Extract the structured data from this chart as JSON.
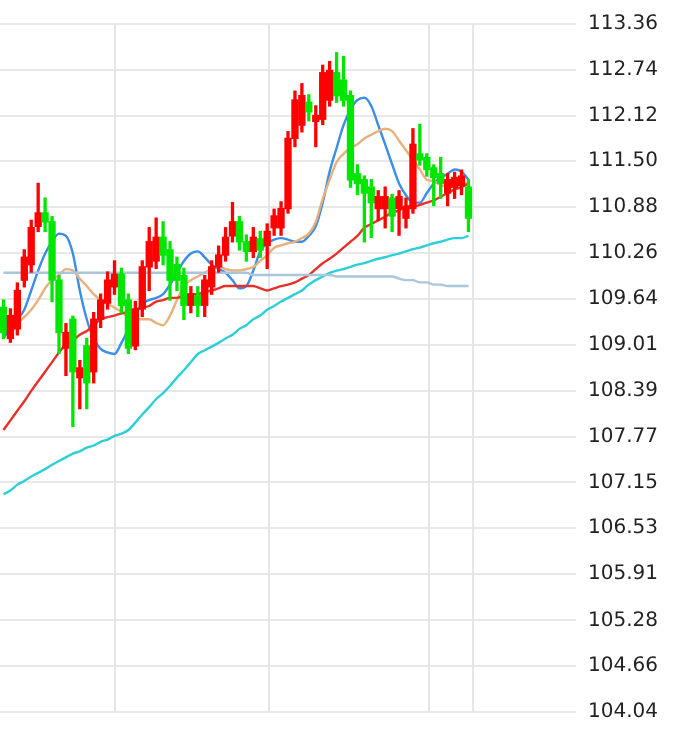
{
  "chart_data": {
    "type": "candlestick",
    "categories": [
      null,
      null,
      null,
      null,
      null,
      null,
      null,
      null,
      null,
      null,
      null,
      null,
      null,
      null,
      null,
      null,
      null,
      null,
      null,
      null,
      null,
      null,
      null,
      null,
      null,
      null,
      null,
      null,
      null,
      null,
      null,
      null,
      null,
      null,
      null,
      null,
      null,
      null,
      null,
      null,
      null,
      null,
      null,
      null,
      null,
      null,
      null,
      null,
      null,
      null,
      null,
      null,
      null,
      null,
      null,
      null,
      null,
      null,
      null,
      null,
      null,
      null,
      null,
      null,
      null,
      null,
      null,
      null,
      null,
      null,
      null,
      null,
      null,
      null,
      null,
      null,
      null,
      null,
      null,
      null,
      null,
      null,
      null
    ],
    "ohlc": [
      [
        109.52,
        109.62,
        109.1,
        109.18
      ],
      [
        109.1,
        109.5,
        109.05,
        109.41
      ],
      [
        109.23,
        109.85,
        109.15,
        109.75
      ],
      [
        109.89,
        110.3,
        109.8,
        110.2
      ],
      [
        110.1,
        110.7,
        110.0,
        110.6
      ],
      [
        110.62,
        111.2,
        110.55,
        110.8
      ],
      [
        110.8,
        111.0,
        110.55,
        110.68
      ],
      [
        110.68,
        110.75,
        109.6,
        109.89
      ],
      [
        109.89,
        109.95,
        108.9,
        109.18
      ],
      [
        108.97,
        109.3,
        108.6,
        109.18
      ],
      [
        109.36,
        109.4,
        107.91,
        108.65
      ],
      [
        108.57,
        108.8,
        108.15,
        108.7
      ],
      [
        109.0,
        109.1,
        108.15,
        108.5
      ],
      [
        108.65,
        109.45,
        108.5,
        109.36
      ],
      [
        109.36,
        109.7,
        109.25,
        109.62
      ],
      [
        109.58,
        110.0,
        109.5,
        109.89
      ],
      [
        109.8,
        110.15,
        109.7,
        109.97
      ],
      [
        109.97,
        110.05,
        109.45,
        109.55
      ],
      [
        109.62,
        109.7,
        108.9,
        108.97
      ],
      [
        109.0,
        109.6,
        108.95,
        109.5
      ],
      [
        109.5,
        110.15,
        109.4,
        110.07
      ],
      [
        110.07,
        110.6,
        109.75,
        110.41
      ],
      [
        110.15,
        110.73,
        110.05,
        110.47
      ],
      [
        110.47,
        110.68,
        110.1,
        110.23
      ],
      [
        110.3,
        110.41,
        109.62,
        109.89
      ],
      [
        110.1,
        110.2,
        109.75,
        109.89
      ],
      [
        109.95,
        110.05,
        109.36,
        109.55
      ],
      [
        109.55,
        109.8,
        109.45,
        109.7
      ],
      [
        109.68,
        109.8,
        109.4,
        109.55
      ],
      [
        109.55,
        109.95,
        109.4,
        109.89
      ],
      [
        109.8,
        110.15,
        109.7,
        110.07
      ],
      [
        110.07,
        110.35,
        110.0,
        110.23
      ],
      [
        110.23,
        110.6,
        110.15,
        110.47
      ],
      [
        110.49,
        110.94,
        110.41,
        110.68
      ],
      [
        110.68,
        110.75,
        110.3,
        110.41
      ],
      [
        110.41,
        110.5,
        110.15,
        110.28
      ],
      [
        110.28,
        110.6,
        110.2,
        110.47
      ],
      [
        110.45,
        110.55,
        110.2,
        110.3
      ],
      [
        110.36,
        110.65,
        110.05,
        110.55
      ],
      [
        110.6,
        110.85,
        110.5,
        110.76
      ],
      [
        110.6,
        110.95,
        110.5,
        110.86
      ],
      [
        110.86,
        111.9,
        110.8,
        111.81
      ],
      [
        111.81,
        112.45,
        111.7,
        112.33
      ],
      [
        111.99,
        112.55,
        111.9,
        112.39
      ],
      [
        112.3,
        112.4,
        112.05,
        112.17
      ],
      [
        112.04,
        112.25,
        111.7,
        112.12
      ],
      [
        112.07,
        112.8,
        112.0,
        112.7
      ],
      [
        112.33,
        112.85,
        112.25,
        112.73
      ],
      [
        112.7,
        112.97,
        112.3,
        112.39
      ],
      [
        112.6,
        112.92,
        112.25,
        112.33
      ],
      [
        112.39,
        112.45,
        111.15,
        111.25
      ],
      [
        111.33,
        111.45,
        111.05,
        111.2
      ],
      [
        111.25,
        111.3,
        110.41,
        111.07
      ],
      [
        111.15,
        111.25,
        110.47,
        110.94
      ],
      [
        110.86,
        111.1,
        110.7,
        111.02
      ],
      [
        110.86,
        111.15,
        110.6,
        111.02
      ],
      [
        111.0,
        111.05,
        110.55,
        110.76
      ],
      [
        110.86,
        111.1,
        110.5,
        111.02
      ],
      [
        110.73,
        111.0,
        110.6,
        110.89
      ],
      [
        110.86,
        111.94,
        110.8,
        111.73
      ],
      [
        111.6,
        112.0,
        111.45,
        111.52
      ],
      [
        111.55,
        111.6,
        111.3,
        111.39
      ],
      [
        111.41,
        111.45,
        110.9,
        111.28
      ],
      [
        111.33,
        111.55,
        111.0,
        111.2
      ],
      [
        111.07,
        111.33,
        110.9,
        111.25
      ],
      [
        111.15,
        111.35,
        111.0,
        111.28
      ],
      [
        111.17,
        111.38,
        111.05,
        111.3
      ],
      [
        111.15,
        111.25,
        110.55,
        110.73
      ],
      null,
      null,
      null,
      null,
      null,
      null,
      null,
      null,
      null,
      null,
      null,
      null,
      null,
      null,
      null
    ],
    "colors": [
      "#00e600",
      "#ff0000",
      "#ff0000",
      "#ff0000",
      "#ff0000",
      "#ff0000",
      "#00e600",
      "#00e600",
      "#00e600",
      "#ff0000",
      "#00e600",
      "#ff0000",
      "#00e600",
      "#ff0000",
      "#ff0000",
      "#ff0000",
      "#ff0000",
      "#00e600",
      "#00e600",
      "#ff0000",
      "#ff0000",
      "#ff0000",
      "#ff0000",
      "#00e600",
      "#00e600",
      "#00e600",
      "#00e600",
      "#ff0000",
      "#00e600",
      "#ff0000",
      "#ff0000",
      "#ff0000",
      "#ff0000",
      "#ff0000",
      "#00e600",
      "#00e600",
      "#ff0000",
      "#00e600",
      "#ff0000",
      "#ff0000",
      "#ff0000",
      "#ff0000",
      "#ff0000",
      "#ff0000",
      "#00e600",
      "#ff0000",
      "#ff0000",
      "#ff0000",
      "#00e600",
      "#00e600",
      "#00e600",
      "#00e600",
      "#00e600",
      "#00e600",
      "#ff0000",
      "#ff0000",
      "#00e600",
      "#ff0000",
      "#ff0000",
      "#ff0000",
      "#00e600",
      "#00e600",
      "#00e600",
      "#00e600",
      "#ff0000",
      "#ff0000",
      "#ff0000",
      "#00e600",
      null,
      null,
      null,
      null,
      null,
      null,
      null,
      null,
      null,
      null,
      null,
      null,
      null,
      null,
      null
    ],
    "series": [
      {
        "type": "line",
        "color": "#a9c6dc",
        "values": [
          109.99,
          109.99,
          109.99,
          109.99,
          109.99,
          109.99,
          109.99,
          109.99,
          109.99,
          109.99,
          109.99,
          109.99,
          109.99,
          109.99,
          109.99,
          109.99,
          109.99,
          109.99,
          109.99,
          109.99,
          109.99,
          109.99,
          109.99,
          109.99,
          109.99,
          109.99,
          109.99,
          109.99,
          109.99,
          109.99,
          109.99,
          109.99,
          109.99,
          109.99,
          109.99,
          109.99,
          109.96,
          109.96,
          109.96,
          109.96,
          109.96,
          109.96,
          109.96,
          109.96,
          109.96,
          109.96,
          109.96,
          109.96,
          109.94,
          109.94,
          109.94,
          109.94,
          109.94,
          109.94,
          109.94,
          109.94,
          109.94,
          109.91,
          109.89,
          109.89,
          109.86,
          109.86,
          109.83,
          109.83,
          109.81,
          109.81,
          109.81,
          109.81,
          null,
          null,
          null,
          null,
          null,
          null,
          null,
          null,
          null,
          null,
          null,
          null,
          null,
          null,
          null
        ]
      },
      {
        "type": "line",
        "color": "#2ccfd8",
        "values": [
          106.99,
          107.04,
          107.12,
          107.17,
          107.23,
          107.28,
          107.33,
          107.39,
          107.44,
          107.49,
          107.54,
          107.57,
          107.62,
          107.65,
          107.7,
          107.73,
          107.78,
          107.81,
          107.86,
          107.96,
          108.07,
          108.17,
          108.28,
          108.36,
          108.46,
          108.57,
          108.67,
          108.78,
          108.89,
          108.94,
          108.99,
          109.04,
          109.1,
          109.15,
          109.23,
          109.28,
          109.36,
          109.41,
          109.49,
          109.54,
          109.6,
          109.65,
          109.7,
          109.75,
          109.83,
          109.89,
          109.94,
          109.99,
          110.02,
          110.04,
          110.07,
          110.1,
          110.12,
          110.15,
          110.18,
          110.2,
          110.23,
          110.25,
          110.28,
          110.31,
          110.33,
          110.36,
          110.39,
          110.41,
          110.44,
          110.46,
          110.46,
          110.49,
          null,
          null,
          null,
          null,
          null,
          null,
          null,
          null,
          null,
          null,
          null,
          null,
          null,
          null,
          null
        ]
      },
      {
        "type": "line",
        "color": "#e8302a",
        "values": [
          107.86,
          107.99,
          108.12,
          108.25,
          108.39,
          108.52,
          108.65,
          108.78,
          108.91,
          109.02,
          109.07,
          109.15,
          109.2,
          109.28,
          109.36,
          109.39,
          109.41,
          109.44,
          109.46,
          109.49,
          109.52,
          109.54,
          109.6,
          109.62,
          109.65,
          109.65,
          109.68,
          109.7,
          109.7,
          109.73,
          109.75,
          109.78,
          109.81,
          109.81,
          109.81,
          109.81,
          109.81,
          109.78,
          109.75,
          109.78,
          109.81,
          109.83,
          109.86,
          109.91,
          109.96,
          110.04,
          110.12,
          110.18,
          110.25,
          110.33,
          110.41,
          110.49,
          110.6,
          110.65,
          110.7,
          110.75,
          110.81,
          110.83,
          110.89,
          110.89,
          110.91,
          110.94,
          110.97,
          111.02,
          111.07,
          111.12,
          111.15,
          111.2,
          null,
          null,
          null,
          null,
          null,
          null,
          null,
          null,
          null,
          null,
          null,
          null,
          null,
          null,
          null
        ]
      },
      {
        "type": "line",
        "color": "#e8b07a",
        "values": [
          null,
          109.25,
          109.31,
          109.39,
          109.49,
          109.62,
          109.78,
          109.89,
          109.96,
          110.04,
          110.02,
          109.91,
          109.81,
          109.7,
          109.62,
          109.57,
          109.52,
          109.46,
          109.39,
          109.36,
          109.36,
          109.36,
          109.31,
          109.28,
          109.41,
          109.62,
          109.81,
          109.89,
          109.94,
          109.99,
          110.04,
          110.07,
          110.04,
          110.02,
          110.02,
          110.04,
          110.07,
          110.15,
          110.23,
          110.33,
          110.36,
          110.39,
          110.41,
          110.46,
          110.52,
          110.68,
          110.99,
          111.25,
          111.49,
          111.6,
          111.68,
          111.73,
          111.81,
          111.86,
          111.91,
          111.94,
          111.91,
          111.78,
          111.65,
          111.52,
          111.39,
          111.25,
          111.23,
          111.18,
          111.15,
          111.18,
          111.2,
          111.2,
          null,
          null,
          null,
          null,
          null,
          null,
          null,
          null,
          null,
          null,
          null,
          null,
          null,
          null,
          null
        ]
      },
      {
        "type": "line",
        "color": "#3a8ee6",
        "values": [
          109.1,
          109.25,
          109.36,
          109.49,
          109.75,
          110.02,
          110.25,
          110.41,
          110.52,
          110.49,
          110.25,
          109.75,
          109.36,
          109.1,
          108.96,
          108.91,
          108.89,
          109.04,
          109.23,
          null,
          109.57,
          109.62,
          109.65,
          109.7,
          109.83,
          109.99,
          110.15,
          110.25,
          110.28,
          110.2,
          110.1,
          110.04,
          109.99,
          109.89,
          109.78,
          109.81,
          110.02,
          110.28,
          110.39,
          110.44,
          110.46,
          110.44,
          110.41,
          110.41,
          110.49,
          110.62,
          110.94,
          111.36,
          111.68,
          111.99,
          112.2,
          112.33,
          112.36,
          112.25,
          111.99,
          111.73,
          111.46,
          111.2,
          111.04,
          110.94,
          110.94,
          111.07,
          111.2,
          111.28,
          111.33,
          111.39,
          111.36,
          111.25,
          null,
          null,
          null,
          null,
          null,
          null,
          null,
          null,
          null,
          null,
          null,
          null,
          null,
          null,
          null
        ]
      }
    ],
    "ylim": [
      104.04,
      113.36
    ],
    "yticks": [
      113.36,
      112.74,
      112.12,
      {
        "value": 111.5,
        "label": "111.50"
      },
      110.88,
      110.26,
      109.64,
      109.01,
      108.39,
      107.77,
      107.15,
      106.53,
      105.91,
      105.28,
      104.66,
      104.04
    ],
    "grid": "y",
    "legend": false,
    "tick_labels": "y",
    "marker": "none",
    "line_style": "solid"
  }
}
